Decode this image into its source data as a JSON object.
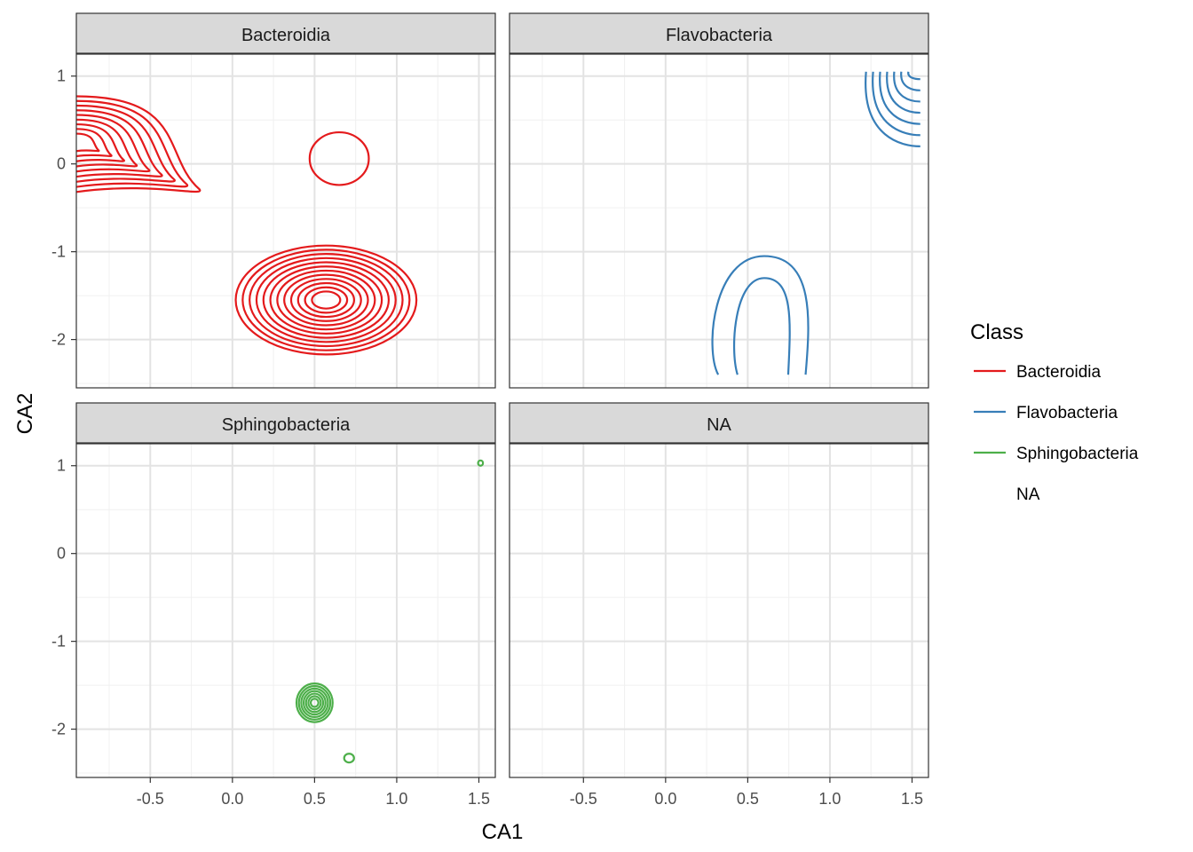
{
  "chart_data": {
    "type": "density-contour",
    "xlabel": "CA1",
    "ylabel": "CA2",
    "xlim": [
      -0.95,
      1.6
    ],
    "ylim": [
      -2.55,
      1.25
    ],
    "x_ticks": [
      -0.5,
      0.0,
      0.5,
      1.0,
      1.5
    ],
    "x_tick_labels": [
      "-0.5",
      "0.0",
      "0.5",
      "1.0",
      "1.5"
    ],
    "y_ticks": [
      1,
      0,
      -1,
      -2
    ],
    "y_tick_labels": [
      "1",
      "0",
      "-1",
      "-2"
    ],
    "grid": true,
    "legend": {
      "title": "Class",
      "position": "right",
      "entries": [
        {
          "label": "Bacteroidia",
          "color": "#e41a1c"
        },
        {
          "label": "Flavobacteria",
          "color": "#377eb8"
        },
        {
          "label": "Sphingobacteria",
          "color": "#4daf4a"
        },
        {
          "label": "NA",
          "color": null
        }
      ]
    },
    "panels": [
      {
        "strip": "Bacteroidia",
        "color": "#e41a1c",
        "contours": [
          {
            "open": true,
            "cx": -0.95,
            "cy": 0.25,
            "rx_r": 0.75,
            "rx_l": 0.1,
            "ry_t": 0.52,
            "ry_b": 0.6,
            "levels": 9
          },
          {
            "open": false,
            "cx": 0.65,
            "cy": 0.06,
            "rx": 0.18,
            "ry": 0.3,
            "levels": 1
          },
          {
            "open": false,
            "cx": 0.57,
            "cy": -1.55,
            "rx": 0.55,
            "ry": 0.62,
            "levels": 12
          }
        ]
      },
      {
        "strip": "Flavobacteria",
        "color": "#377eb8",
        "contours": [
          {
            "open": true,
            "shape": "arch",
            "cx": 0.6,
            "top": -1.05,
            "bottom": -2.4,
            "half_width": 0.28,
            "levels": 2
          },
          {
            "open": true,
            "shape": "corner",
            "cx": 1.55,
            "cy": 1.05,
            "levels": 7
          }
        ]
      },
      {
        "strip": "Sphingobacteria",
        "color": "#4daf4a",
        "contours": [
          {
            "open": false,
            "cx": 0.5,
            "cy": -1.7,
            "rx": 0.11,
            "ry": 0.22,
            "levels": 7
          },
          {
            "open": false,
            "cx": 0.71,
            "cy": -2.33,
            "rx": 0.03,
            "ry": 0.05,
            "levels": 1
          },
          {
            "open": false,
            "cx": 1.51,
            "cy": 1.03,
            "rx": 0.015,
            "ry": 0.03,
            "levels": 1
          }
        ]
      },
      {
        "strip": "NA",
        "color": null,
        "contours": []
      }
    ]
  }
}
